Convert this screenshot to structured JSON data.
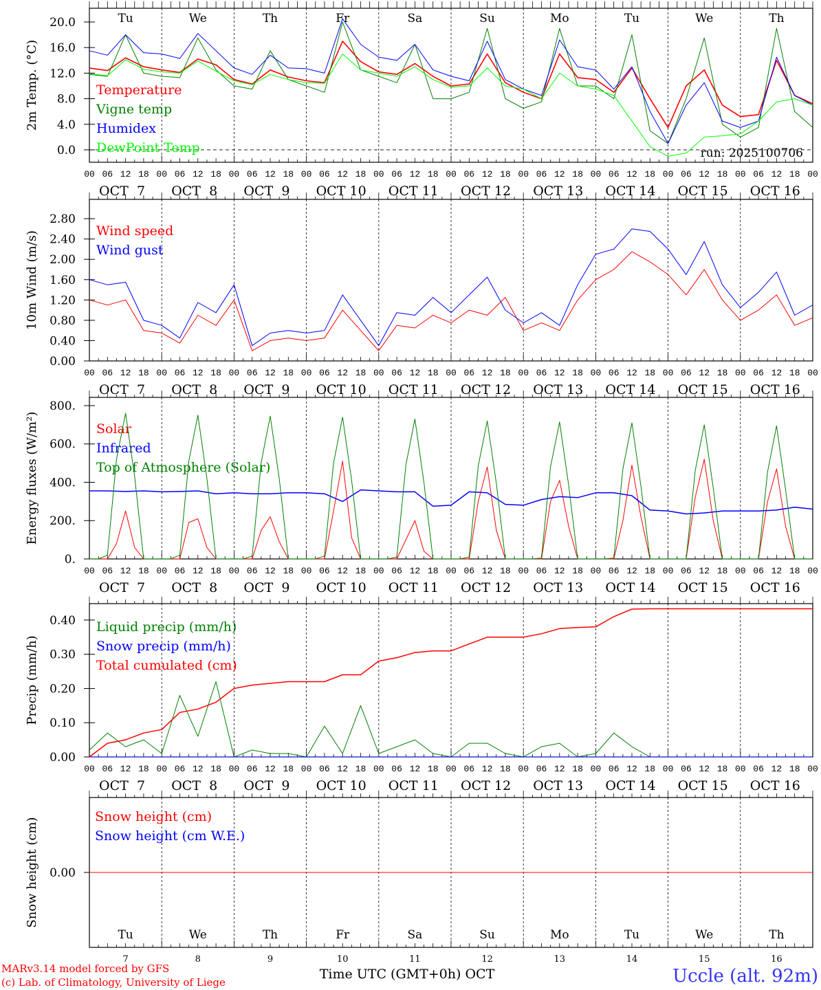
{
  "colors": {
    "temperature": "#ff0000",
    "vigne": "#008000",
    "humidex": "#0000ff",
    "dewpoint": "#00ff00",
    "weekend": "#ff0000",
    "footer": "#ff0000",
    "station": "#3333ff"
  },
  "hour_ticks": [
    "00",
    "06",
    "12",
    "18"
  ],
  "month": "OCT",
  "days": [
    {
      "abbr": "Tu",
      "date": "7",
      "weekend": false
    },
    {
      "abbr": "We",
      "date": "8",
      "weekend": false
    },
    {
      "abbr": "Th",
      "date": "9",
      "weekend": false
    },
    {
      "abbr": "Fr",
      "date": "10",
      "weekend": false
    },
    {
      "abbr": "Sa",
      "date": "11",
      "weekend": true
    },
    {
      "abbr": "Su",
      "date": "12",
      "weekend": true
    },
    {
      "abbr": "Mo",
      "date": "13",
      "weekend": false
    },
    {
      "abbr": "Tu",
      "date": "14",
      "weekend": false
    },
    {
      "abbr": "We",
      "date": "15",
      "weekend": false
    },
    {
      "abbr": "Th",
      "date": "16",
      "weekend": false
    }
  ],
  "run_label": "run: 2025100706",
  "footer": {
    "model": "MARv3.14 model forced by GFS",
    "credit": "(c) Lab. of Climatology, University of Liege",
    "xlabel": "Time UTC (GMT+0h) OCT",
    "station": "Uccle (alt. 92m)"
  },
  "chart_data": [
    {
      "type": "line",
      "ylabel": "2m Temp. (°C)",
      "ylim": [
        -1.94,
        22.15
      ],
      "yticks": [
        "0.0",
        "4.0",
        "8.0",
        "12.0",
        "16.0",
        "20.0"
      ],
      "ytick_values": [
        0,
        4,
        8,
        12,
        16,
        20
      ],
      "zero_line": true,
      "show_day_names": true,
      "series": [
        {
          "name": "Temperature",
          "color": "#ff0000",
          "width": 1.6,
          "step_hours": 6,
          "values": [
            12.8,
            12.4,
            14.4,
            13.0,
            12.5,
            12.1,
            14.2,
            13.3,
            11.0,
            10.3,
            12.5,
            11.4,
            10.8,
            10.5,
            17.0,
            13.8,
            12.2,
            11.8,
            13.5,
            11.5,
            10.0,
            10.3,
            15.0,
            10.5,
            9.0,
            8.0,
            15.0,
            11.3,
            11.0,
            9.0,
            12.8,
            8.0,
            3.5,
            10.0,
            12.5,
            7.0,
            5.2,
            5.5,
            14.0,
            8.5,
            7.2
          ]
        },
        {
          "name": "Vigne temp",
          "color": "#008000",
          "width": 1,
          "step_hours": 6,
          "values": [
            11.8,
            11.5,
            18.0,
            12.0,
            11.5,
            11.3,
            17.5,
            12.5,
            10.0,
            9.5,
            15.5,
            11.0,
            10.0,
            9.0,
            20.0,
            12.5,
            11.5,
            10.5,
            16.5,
            8.0,
            8.0,
            9.0,
            19.0,
            8.0,
            6.5,
            7.5,
            19.0,
            10.0,
            10.0,
            8.0,
            18.0,
            3.0,
            1.0,
            8.0,
            17.5,
            4.0,
            2.0,
            3.5,
            19.0,
            6.0,
            3.5
          ]
        },
        {
          "name": "Humidex",
          "color": "#0000ff",
          "width": 1,
          "step_hours": 6,
          "values": [
            15.5,
            14.8,
            18.0,
            15.2,
            15.0,
            14.3,
            18.2,
            15.5,
            12.8,
            11.8,
            14.8,
            12.8,
            12.7,
            12.0,
            20.5,
            16.5,
            14.5,
            14.0,
            16.5,
            12.5,
            11.5,
            10.8,
            17.0,
            11.0,
            9.5,
            8.5,
            17.2,
            13.0,
            12.5,
            9.5,
            13.0,
            6.0,
            1.0,
            7.0,
            10.5,
            4.5,
            3.5,
            4.5,
            14.5,
            8.5,
            7.0
          ]
        },
        {
          "name": "DewPoint Temp",
          "color": "#00ff00",
          "width": 1,
          "step_hours": 6,
          "values": [
            11.9,
            11.6,
            14.1,
            12.6,
            12.2,
            12.0,
            13.9,
            12.3,
            10.8,
            10.2,
            11.8,
            11.0,
            10.5,
            10.4,
            15.0,
            12.5,
            12.0,
            11.5,
            13.0,
            11.0,
            9.8,
            10.0,
            12.8,
            10.0,
            9.5,
            8.0,
            12.0,
            10.0,
            9.5,
            8.5,
            4.5,
            0.5,
            -1.0,
            -0.5,
            2.0,
            2.2,
            2.5,
            4.5,
            7.5,
            8.0,
            7.0
          ]
        }
      ]
    },
    {
      "type": "line",
      "ylabel": "10m Wind (m/s)",
      "ylim": [
        0,
        3.18
      ],
      "yticks": [
        "0.00",
        "0.40",
        "0.80",
        "1.20",
        "1.60",
        "2.00",
        "2.40",
        "2.80"
      ],
      "ytick_values": [
        0,
        0.4,
        0.8,
        1.2,
        1.6,
        2.0,
        2.4,
        2.8
      ],
      "series": [
        {
          "name": "Wind speed",
          "color": "#ff0000",
          "width": 1,
          "step_hours": 6,
          "values": [
            1.2,
            1.1,
            1.2,
            0.6,
            0.55,
            0.35,
            0.9,
            0.7,
            1.2,
            0.2,
            0.4,
            0.45,
            0.4,
            0.45,
            1.0,
            0.6,
            0.2,
            0.7,
            0.65,
            0.9,
            0.75,
            1.0,
            0.9,
            1.25,
            0.6,
            0.75,
            0.6,
            1.2,
            1.6,
            1.8,
            2.15,
            1.95,
            1.7,
            1.3,
            1.8,
            1.2,
            0.8,
            1.0,
            1.3,
            0.7,
            0.85
          ]
        },
        {
          "name": "Wind gust",
          "color": "#0000ff",
          "width": 1,
          "step_hours": 6,
          "values": [
            1.6,
            1.5,
            1.55,
            0.8,
            0.7,
            0.45,
            1.15,
            0.95,
            1.5,
            0.3,
            0.55,
            0.6,
            0.55,
            0.6,
            1.3,
            0.8,
            0.3,
            0.95,
            0.9,
            1.25,
            0.95,
            1.3,
            1.65,
            1.0,
            0.75,
            0.95,
            0.7,
            1.5,
            2.1,
            2.2,
            2.6,
            2.55,
            2.2,
            1.7,
            2.35,
            1.5,
            1.05,
            1.35,
            1.75,
            0.9,
            1.1
          ]
        }
      ]
    },
    {
      "type": "line",
      "ylabel": "Energy fluxes (W/m²)",
      "ylim": [
        0,
        843
      ],
      "yticks": [
        "0.",
        "200.",
        "400.",
        "600.",
        "800."
      ],
      "ytick_values": [
        0,
        200,
        400,
        600,
        800
      ],
      "series": [
        {
          "name": "Solar",
          "color": "#ff0000",
          "width": 1,
          "step_hours": 3,
          "values": [
            0,
            0,
            0,
            80,
            250,
            60,
            0,
            0,
            0,
            0,
            0,
            190,
            210,
            60,
            0,
            0,
            0,
            0,
            0,
            150,
            220,
            90,
            0,
            0,
            0,
            0,
            0,
            250,
            510,
            110,
            0,
            0,
            0,
            0,
            0,
            100,
            200,
            40,
            0,
            0,
            0,
            0,
            0,
            300,
            480,
            150,
            0,
            0,
            0,
            0,
            0,
            300,
            410,
            170,
            0,
            0,
            0,
            0,
            0,
            200,
            490,
            220,
            0,
            0,
            0,
            0,
            0,
            320,
            520,
            200,
            0,
            0,
            0,
            0,
            0,
            300,
            470,
            170,
            0,
            0,
            0
          ]
        },
        {
          "name": "Infrared",
          "color": "#0000ff",
          "width": 1.5,
          "step_hours": 6,
          "values": [
            355,
            355,
            352,
            355,
            350,
            352,
            355,
            340,
            345,
            340,
            340,
            345,
            345,
            340,
            300,
            360,
            355,
            350,
            350,
            275,
            280,
            350,
            345,
            285,
            280,
            310,
            325,
            320,
            345,
            345,
            330,
            255,
            250,
            235,
            240,
            250,
            250,
            250,
            255,
            270,
            260
          ]
        },
        {
          "name": "Top of Atmosphere (Solar)",
          "color": "#008000",
          "width": 1,
          "step_hours": 3,
          "values": [
            0,
            0,
            20,
            520,
            760,
            430,
            0,
            0,
            0,
            0,
            20,
            510,
            750,
            420,
            0,
            0,
            0,
            0,
            15,
            505,
            745,
            420,
            0,
            0,
            0,
            0,
            15,
            500,
            740,
            410,
            0,
            0,
            0,
            0,
            10,
            490,
            730,
            400,
            0,
            0,
            0,
            0,
            10,
            485,
            720,
            395,
            0,
            0,
            0,
            0,
            5,
            480,
            715,
            385,
            0,
            0,
            0,
            0,
            5,
            470,
            710,
            380,
            0,
            0,
            0,
            0,
            0,
            460,
            700,
            370,
            0,
            0,
            0,
            0,
            0,
            455,
            695,
            360,
            0,
            0,
            0
          ]
        }
      ]
    },
    {
      "type": "line",
      "ylabel": "Precip (mm/h)",
      "ylim": [
        0,
        0.448
      ],
      "yticks": [
        "0.00",
        "0.10",
        "0.20",
        "0.30",
        "0.40"
      ],
      "ytick_values": [
        0,
        0.1,
        0.2,
        0.3,
        0.4
      ],
      "series": [
        {
          "name": "Liquid precip (mm/h)",
          "color": "#008000",
          "width": 1,
          "step_hours": 6,
          "values": [
            0.02,
            0.07,
            0.03,
            0.05,
            0.01,
            0.18,
            0.06,
            0.22,
            0.0,
            0.02,
            0.01,
            0.01,
            0,
            0.09,
            0.01,
            0.15,
            0.01,
            0.03,
            0.05,
            0.01,
            0.0,
            0.04,
            0.04,
            0.01,
            0.0,
            0.03,
            0.04,
            0.0,
            0.01,
            0.07,
            0.03,
            0,
            0,
            0,
            0,
            0,
            0,
            0,
            0,
            0,
            0
          ]
        },
        {
          "name": "Snow precip (mm/h)",
          "color": "#0000ff",
          "width": 1,
          "step_hours": 6,
          "values": [
            0,
            0,
            0,
            0,
            0,
            0,
            0,
            0,
            0,
            0,
            0,
            0,
            0,
            0,
            0,
            0,
            0,
            0,
            0,
            0,
            0,
            0,
            0,
            0,
            0,
            0,
            0,
            0,
            0,
            0,
            0,
            0,
            0,
            0,
            0,
            0,
            0,
            0,
            0,
            0,
            0
          ]
        },
        {
          "name": "Total cumulated (cm)",
          "color": "#ff0000",
          "width": 1.5,
          "step_hours": 6,
          "values": [
            0,
            0.04,
            0.05,
            0.07,
            0.08,
            0.13,
            0.14,
            0.16,
            0.2,
            0.21,
            0.215,
            0.22,
            0.22,
            0.22,
            0.24,
            0.24,
            0.28,
            0.29,
            0.305,
            0.31,
            0.31,
            0.33,
            0.35,
            0.35,
            0.35,
            0.36,
            0.375,
            0.378,
            0.38,
            0.41,
            0.432,
            0.433,
            0.433,
            0.433,
            0.433,
            0.433,
            0.433,
            0.433,
            0.433,
            0.433,
            0.433
          ]
        }
      ]
    },
    {
      "type": "line",
      "ylabel": "Snow height (cm)",
      "ylim": [
        -1,
        1
      ],
      "yticks": [
        "0.00"
      ],
      "ytick_values": [
        0
      ],
      "bottom_days": true,
      "series": [
        {
          "name": "Snow height (cm)",
          "color": "#ff0000",
          "width": 1,
          "step_hours": 240,
          "values": [
            0,
            0
          ]
        },
        {
          "name": "Snow height (cm W.E.)",
          "color": "#0000ff",
          "width": 0,
          "step_hours": 240,
          "values": [
            0,
            0
          ]
        }
      ]
    }
  ]
}
